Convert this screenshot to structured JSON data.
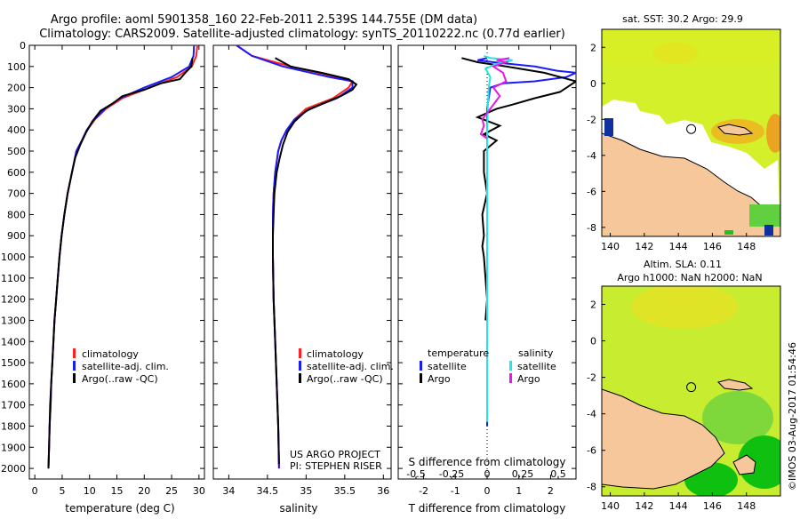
{
  "header": {
    "line1": "Argo profile: aoml 5901358_160 22-Feb-2011 2.539S 144.755E (DM data)",
    "line2": "Climatology: CARS2009. Satellite-adjusted climatology: synTS_20110222.nc (0.77d earlier)"
  },
  "colors": {
    "climatology": "#ff2020",
    "satellite": "#1a1aff",
    "argo": "#000000",
    "argo_salinity_diff": "#e619e6",
    "satellite_salinity_diff": "#22e6e6",
    "land": "#f5c79a",
    "sea_warm": "#d4f02a"
  },
  "side_text": {
    "timestamp": "©IMOS 03-Aug-2017 01:54:46"
  },
  "chart_data": [
    {
      "type": "line",
      "id": "temperature",
      "xlabel": "temperature (deg C)",
      "xlim": [
        -1,
        31
      ],
      "xticks": [
        0,
        5,
        10,
        15,
        20,
        25,
        30
      ],
      "ylim": [
        2050,
        0
      ],
      "yticks": [
        0,
        100,
        200,
        300,
        400,
        500,
        600,
        700,
        800,
        900,
        1000,
        1100,
        1200,
        1300,
        1400,
        1500,
        1600,
        1700,
        1800,
        1900,
        2000
      ],
      "legend": [
        "climatology",
        "satellite-adj. clim.",
        "Argo(..raw -QC)"
      ],
      "series": [
        {
          "name": "climatology",
          "color_key": "climatology",
          "points": [
            [
              29.7,
              0
            ],
            [
              29.5,
              50
            ],
            [
              28.7,
              100
            ],
            [
              26,
              150
            ],
            [
              21,
              200
            ],
            [
              16,
              250
            ],
            [
              13,
              300
            ],
            [
              11,
              350
            ],
            [
              9.6,
              400
            ],
            [
              8.6,
              450
            ],
            [
              7.6,
              500
            ],
            [
              6.8,
              600
            ],
            [
              6,
              700
            ],
            [
              5.4,
              800
            ],
            [
              4.9,
              900
            ],
            [
              4.5,
              1000
            ],
            [
              4.2,
              1100
            ],
            [
              3.9,
              1200
            ],
            [
              3.6,
              1300
            ],
            [
              3.4,
              1400
            ],
            [
              3.2,
              1500
            ],
            [
              3,
              1600
            ],
            [
              2.9,
              1700
            ],
            [
              2.7,
              1800
            ],
            [
              2.6,
              1900
            ],
            [
              2.5,
              2000
            ]
          ]
        },
        {
          "name": "satellite-adj. clim.",
          "color_key": "satellite",
          "points": [
            [
              29.1,
              0
            ],
            [
              29,
              50
            ],
            [
              28.2,
              100
            ],
            [
              25,
              150
            ],
            [
              20,
              200
            ],
            [
              15.6,
              250
            ],
            [
              12.8,
              300
            ],
            [
              10.9,
              350
            ],
            [
              9.5,
              400
            ],
            [
              8.6,
              450
            ],
            [
              7.6,
              500
            ],
            [
              6.8,
              600
            ],
            [
              6,
              700
            ],
            [
              5.4,
              800
            ],
            [
              4.9,
              900
            ],
            [
              4.5,
              1000
            ],
            [
              4.2,
              1100
            ],
            [
              3.9,
              1200
            ],
            [
              3.6,
              1300
            ],
            [
              3.4,
              1400
            ],
            [
              3.2,
              1500
            ],
            [
              3,
              1600
            ],
            [
              2.9,
              1700
            ],
            [
              2.7,
              1800
            ],
            [
              2.6,
              1900
            ],
            [
              2.5,
              2000
            ]
          ]
        },
        {
          "name": "Argo(..raw -QC)",
          "color_key": "argo",
          "points": [
            [
              28.8,
              60
            ],
            [
              28.6,
              100
            ],
            [
              27.5,
              130
            ],
            [
              26.5,
              160
            ],
            [
              23,
              180
            ],
            [
              20,
              210
            ],
            [
              16,
              240
            ],
            [
              14.5,
              270
            ],
            [
              12,
              310
            ],
            [
              10.5,
              360
            ],
            [
              9.4,
              410
            ],
            [
              8.3,
              470
            ],
            [
              7.4,
              530
            ],
            [
              6.8,
              600
            ],
            [
              6,
              700
            ],
            [
              5.4,
              800
            ],
            [
              4.9,
              900
            ],
            [
              4.5,
              1000
            ],
            [
              4.2,
              1100
            ],
            [
              3.9,
              1200
            ],
            [
              3.6,
              1300
            ],
            [
              3.4,
              1400
            ],
            [
              3.2,
              1500
            ],
            [
              3,
              1600
            ],
            [
              2.8,
              1700
            ],
            [
              2.7,
              1800
            ],
            [
              2.6,
              1900
            ],
            [
              2.5,
              2000
            ]
          ]
        }
      ]
    },
    {
      "type": "line",
      "id": "salinity",
      "xlabel": "salinity",
      "xlim": [
        33.8,
        36.1
      ],
      "xticks": [
        34,
        34.5,
        35,
        35.5,
        36
      ],
      "ylim": [
        2050,
        0
      ],
      "legend": [
        "climatology",
        "satellite-adj. clim.",
        "Argo(..raw -QC)"
      ],
      "annotation": [
        "US ARGO PROJECT",
        "PI: STEPHEN RISER"
      ],
      "series": [
        {
          "name": "climatology",
          "color_key": "climatology",
          "points": [
            [
              34.1,
              0
            ],
            [
              34.3,
              50
            ],
            [
              34.8,
              100
            ],
            [
              35.4,
              150
            ],
            [
              35.6,
              170
            ],
            [
              35.55,
              200
            ],
            [
              35.35,
              250
            ],
            [
              35.0,
              300
            ],
            [
              34.85,
              350
            ],
            [
              34.75,
              400
            ],
            [
              34.68,
              450
            ],
            [
              34.64,
              500
            ],
            [
              34.6,
              600
            ],
            [
              34.58,
              700
            ],
            [
              34.57,
              800
            ],
            [
              34.57,
              900
            ],
            [
              34.57,
              1000
            ],
            [
              34.58,
              1200
            ],
            [
              34.6,
              1400
            ],
            [
              34.62,
              1600
            ],
            [
              34.64,
              1800
            ],
            [
              34.65,
              2000
            ]
          ]
        },
        {
          "name": "satellite-adj. clim.",
          "color_key": "satellite",
          "points": [
            [
              34.1,
              0
            ],
            [
              34.3,
              50
            ],
            [
              34.7,
              100
            ],
            [
              35.3,
              150
            ],
            [
              35.6,
              170
            ],
            [
              35.6,
              200
            ],
            [
              35.4,
              250
            ],
            [
              35.05,
              300
            ],
            [
              34.85,
              350
            ],
            [
              34.75,
              400
            ],
            [
              34.68,
              450
            ],
            [
              34.64,
              500
            ],
            [
              34.6,
              600
            ],
            [
              34.58,
              700
            ],
            [
              34.57,
              800
            ],
            [
              34.57,
              900
            ],
            [
              34.57,
              1000
            ],
            [
              34.58,
              1200
            ],
            [
              34.6,
              1400
            ],
            [
              34.62,
              1600
            ],
            [
              34.64,
              1800
            ],
            [
              34.65,
              2000
            ]
          ]
        },
        {
          "name": "Argo(..raw -QC)",
          "color_key": "argo",
          "points": [
            [
              34.6,
              60
            ],
            [
              34.8,
              100
            ],
            [
              35.2,
              130
            ],
            [
              35.55,
              160
            ],
            [
              35.65,
              185
            ],
            [
              35.6,
              210
            ],
            [
              35.45,
              240
            ],
            [
              35.25,
              270
            ],
            [
              35.0,
              310
            ],
            [
              34.85,
              360
            ],
            [
              34.76,
              410
            ],
            [
              34.7,
              470
            ],
            [
              34.66,
              530
            ],
            [
              34.62,
              600
            ],
            [
              34.59,
              700
            ],
            [
              34.58,
              800
            ],
            [
              34.57,
              900
            ],
            [
              34.57,
              1000
            ],
            [
              34.58,
              1200
            ],
            [
              34.6,
              1400
            ],
            [
              34.62,
              1600
            ],
            [
              34.64,
              1800
            ],
            [
              34.65,
              1980
            ]
          ]
        }
      ]
    },
    {
      "type": "line",
      "id": "difference",
      "xlabel_top": "S difference from climatology",
      "xticks_top": [
        -0.5,
        -0.25,
        0,
        0.25,
        0.5
      ],
      "xticklabels_top": [
        "-0.5",
        "-0.25",
        "0",
        "0.25",
        "0.5"
      ],
      "xlabel": "T difference from climatology",
      "xlim": [
        -2.8,
        2.8
      ],
      "xticks": [
        -2,
        -1,
        0,
        1,
        2
      ],
      "ylim": [
        2050,
        0
      ],
      "legend_titles": [
        "temperature",
        "salinity"
      ],
      "legend": [
        "satellite",
        "Argo",
        "satellite",
        "Argo"
      ],
      "series": [
        {
          "name": "T satellite",
          "color_key": "satellite",
          "points": [
            [
              0,
              60
            ],
            [
              -0.3,
              70
            ],
            [
              0.2,
              80
            ],
            [
              1.5,
              100
            ],
            [
              2.2,
              120
            ],
            [
              2.8,
              130
            ],
            [
              2.5,
              150
            ],
            [
              1.5,
              170
            ],
            [
              0.5,
              180
            ],
            [
              0.1,
              200
            ],
            [
              0,
              300
            ],
            [
              0,
              500
            ],
            [
              0,
              800
            ],
            [
              0,
              1000
            ],
            [
              0,
              1400
            ],
            [
              0,
              1800
            ],
            [
              0,
              1780
            ]
          ]
        },
        {
          "name": "T Argo",
          "color_key": "argo",
          "points": [
            [
              -0.8,
              60
            ],
            [
              -0.3,
              80
            ],
            [
              0.6,
              100
            ],
            [
              1.8,
              130
            ],
            [
              2.8,
              170
            ],
            [
              2.3,
              220
            ],
            [
              1.5,
              250
            ],
            [
              0.8,
              280
            ],
            [
              0.3,
              300
            ],
            [
              -0.3,
              340
            ],
            [
              0.4,
              380
            ],
            [
              -0.1,
              420
            ],
            [
              0.3,
              450
            ],
            [
              -0.1,
              500
            ],
            [
              -0.1,
              600
            ],
            [
              0,
              700
            ],
            [
              -0.15,
              800
            ],
            [
              -0.1,
              900
            ],
            [
              -0.15,
              950
            ],
            [
              -0.1,
              1000
            ],
            [
              -0.05,
              1100
            ],
            [
              0,
              1200
            ],
            [
              -0.05,
              1300
            ]
          ]
        },
        {
          "name": "S satellite",
          "color_key": "satellite_salinity_diff",
          "points": [
            [
              -0.1,
              50
            ],
            [
              0.1,
              60
            ],
            [
              0.8,
              70
            ],
            [
              0.25,
              90
            ],
            [
              -0.05,
              110
            ],
            [
              0.1,
              150
            ],
            [
              0.05,
              200
            ],
            [
              0.02,
              300
            ],
            [
              0,
              400
            ],
            [
              0,
              600
            ],
            [
              0,
              800
            ],
            [
              0,
              1000
            ],
            [
              0,
              1400
            ],
            [
              0,
              1780
            ]
          ]
        },
        {
          "name": "S Argo",
          "color_key": "argo_salinity_diff",
          "points": [
            [
              0.7,
              60
            ],
            [
              0.3,
              70
            ],
            [
              0.6,
              80
            ],
            [
              0.2,
              100
            ],
            [
              0.5,
              130
            ],
            [
              0.6,
              170
            ],
            [
              0.2,
              200
            ],
            [
              0.4,
              240
            ],
            [
              0.3,
              260
            ],
            [
              0.1,
              300
            ],
            [
              -0.15,
              350
            ],
            [
              -0.1,
              380
            ],
            [
              -0.2,
              420
            ],
            [
              0,
              440
            ]
          ]
        }
      ]
    },
    {
      "type": "heatmap",
      "id": "sst-map",
      "title": "sat. SST: 30.2 Argo: 29.9",
      "xticks": [
        140,
        142,
        144,
        146,
        148
      ],
      "yticks": [
        2,
        0,
        -2,
        -4,
        -6,
        -8
      ],
      "xlim": [
        139.5,
        150
      ],
      "ylim": [
        -8.5,
        3
      ],
      "marker_lon": 144.755,
      "marker_lat": -2.539
    },
    {
      "type": "heatmap",
      "id": "sla-map",
      "title": "Altim. SLA: 0.11",
      "subtitle": "Argo h1000: NaN h2000: NaN",
      "xticks": [
        140,
        142,
        144,
        146,
        148
      ],
      "yticks": [
        2,
        0,
        -2,
        -4,
        -6,
        -8
      ],
      "xlim": [
        139.5,
        150
      ],
      "ylim": [
        -8.5,
        3
      ],
      "marker_lon": 144.755,
      "marker_lat": -2.539
    }
  ]
}
